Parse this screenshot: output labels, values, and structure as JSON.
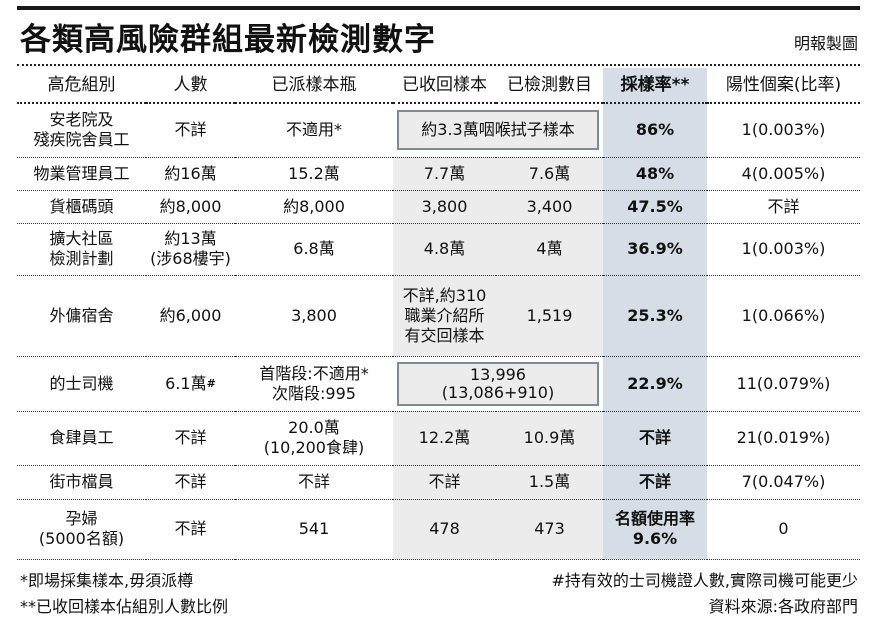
{
  "title": "各類高風險群組最新檢測數字",
  "credit": "明報製圖",
  "colors": {
    "rate_column": "#d6dde6",
    "shaded_columns": "#ececec",
    "box_border": "#7d8b99"
  },
  "headers": [
    "高危組別",
    "人數",
    "已派樣本瓶",
    "已收回樣本",
    "已檢測數目",
    "採樣率**",
    "陽性個案(比率)"
  ],
  "rows": [
    {
      "group": [
        "安老院及",
        "殘疾院舍員工"
      ],
      "people": "不詳",
      "dispatched": "不適用*",
      "merged_samples": "約3.3萬咽喉拭子樣本",
      "rate": "86%",
      "positive": "1(0.003%)"
    },
    {
      "group": [
        "物業管理員工"
      ],
      "people": "約16萬",
      "dispatched": "15.2萬",
      "collected": "7.7萬",
      "tested": "7.6萬",
      "rate": "48%",
      "positive": "4(0.005%)"
    },
    {
      "group": [
        "貨櫃碼頭"
      ],
      "people": "約8,000",
      "dispatched": "約8,000",
      "collected": "3,800",
      "tested": "3,400",
      "rate": "47.5%",
      "positive": "不詳"
    },
    {
      "group": [
        "擴大社區",
        "檢測計劃"
      ],
      "people": [
        "約13萬",
        "(涉68樓宇)"
      ],
      "dispatched": "6.8萬",
      "collected": "4.8萬",
      "tested": "4萬",
      "rate": "36.9%",
      "positive": "1(0.003%)"
    },
    {
      "group": [
        "外傭宿舍"
      ],
      "people": "約6,000",
      "dispatched": "3,800",
      "collected": [
        "不詳,約310",
        "職業介紹所",
        "有交回樣本"
      ],
      "tested": "1,519",
      "rate": "25.3%",
      "positive": "1(0.066%)"
    },
    {
      "group": [
        "的士司機"
      ],
      "people": "6.1萬",
      "people_mark": "#",
      "dispatched": [
        "首階段:不適用*",
        "次階段:995"
      ],
      "merged_samples": [
        "13,996",
        "(13,086+910)"
      ],
      "rate": "22.9%",
      "positive": "11(0.079%)"
    },
    {
      "group": [
        "食肆員工"
      ],
      "people": "不詳",
      "dispatched": [
        "20.0萬",
        "(10,200食肆)"
      ],
      "collected": "12.2萬",
      "tested": "10.9萬",
      "rate": "不詳",
      "positive": "21(0.019%)"
    },
    {
      "group": [
        "街市檔員"
      ],
      "people": "不詳",
      "dispatched": "不詳",
      "collected": "不詳",
      "tested": "1.5萬",
      "rate": "不詳",
      "positive": "7(0.047%)"
    },
    {
      "group": [
        "孕婦",
        "(5000名額)"
      ],
      "people": "不詳",
      "dispatched": "541",
      "collected": "478",
      "tested": "473",
      "rate": [
        "名額使用率",
        "9.6%"
      ],
      "positive": "0"
    }
  ],
  "footnotes": {
    "star": "*即場採集樣本,毋須派樽",
    "double_star": "**已收回樣本佔組別人數比例",
    "hash": "#持有效的士司機證人數,實際司機可能更少",
    "source": "資料來源:各政府部門"
  }
}
